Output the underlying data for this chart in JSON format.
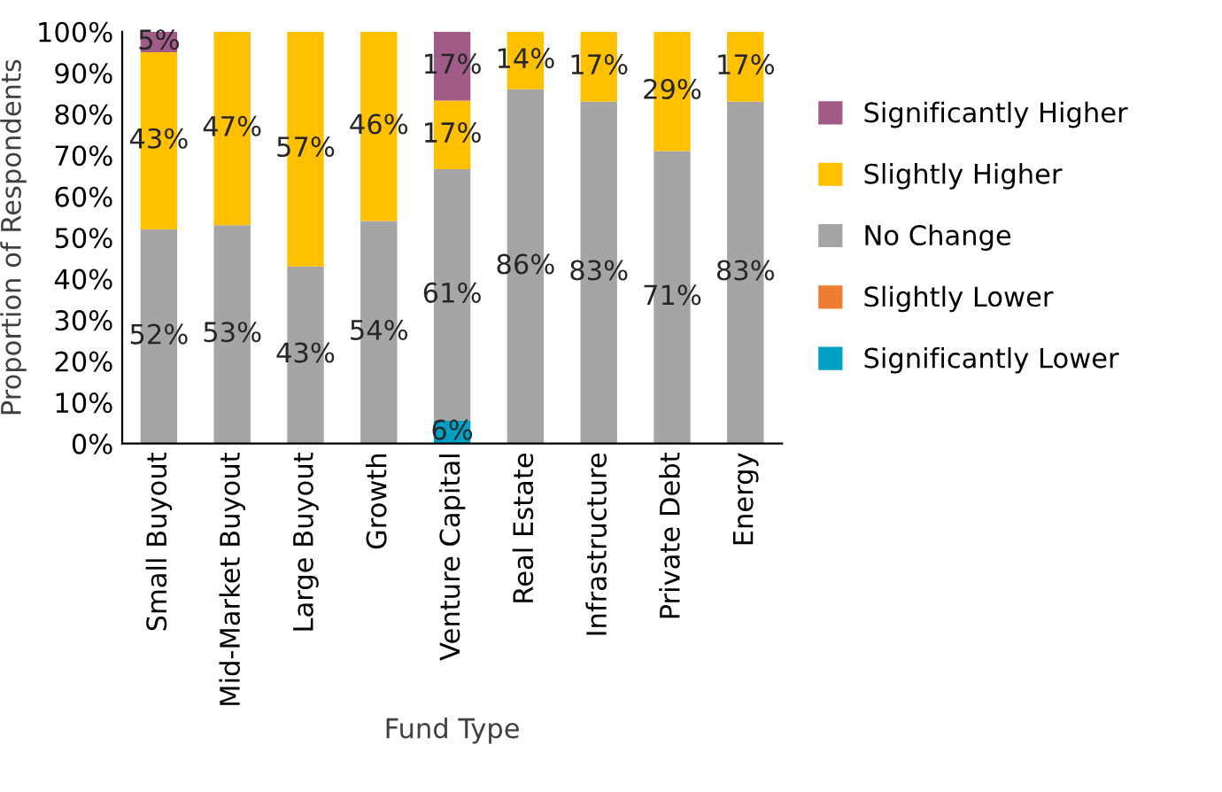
{
  "chart_data": {
    "type": "bar",
    "stacked": true,
    "xlabel": "Fund Type",
    "ylabel": "Proportion of Respondents",
    "categories": [
      "Small Buyout",
      "Mid-Market Buyout",
      "Large Buyout",
      "Growth",
      "Venture Capital",
      "Real Estate",
      "Infrastructure",
      "Private Debt",
      "Energy"
    ],
    "series": [
      {
        "name": "Significantly Lower",
        "color": "#009fc4",
        "values": [
          0,
          0,
          0,
          0,
          5.5,
          0,
          0,
          0,
          0
        ],
        "value_labels": [
          null,
          null,
          null,
          null,
          "6%",
          null,
          null,
          null,
          null
        ]
      },
      {
        "name": "Slightly Lower",
        "color": "#ed7d31",
        "values": [
          0,
          0,
          0,
          0,
          0,
          0,
          0,
          0,
          0
        ],
        "value_labels": [
          null,
          null,
          null,
          null,
          null,
          null,
          null,
          null,
          null
        ]
      },
      {
        "name": "No Change",
        "color": "#a5a5a5",
        "values": [
          52,
          53,
          43,
          54,
          61.1,
          86,
          83,
          71,
          83
        ],
        "value_labels": [
          "52%",
          "53%",
          "43%",
          "54%",
          "61%",
          "86%",
          "83%",
          "71%",
          "83%"
        ]
      },
      {
        "name": "Slightly Higher",
        "color": "#ffc000",
        "values": [
          43,
          47,
          57,
          46,
          16.7,
          14,
          17,
          29,
          17
        ],
        "value_labels": [
          "43%",
          "47%",
          "57%",
          "46%",
          "17%",
          "14%",
          "17%",
          "29%",
          "17%"
        ]
      },
      {
        "name": "Significantly Higher",
        "color": "#a05c87",
        "values": [
          5,
          0,
          0,
          0,
          16.7,
          0,
          0,
          0,
          0
        ],
        "value_labels": [
          "5%",
          null,
          null,
          null,
          "17%",
          null,
          null,
          null,
          null
        ]
      }
    ],
    "ylim": [
      0,
      100
    ],
    "yticks": [
      {
        "value": 0,
        "label": "0%"
      },
      {
        "value": 10,
        "label": "10%"
      },
      {
        "value": 20,
        "label": "20%"
      },
      {
        "value": 30,
        "label": "30%"
      },
      {
        "value": 40,
        "label": "40%"
      },
      {
        "value": 50,
        "label": "50%"
      },
      {
        "value": 60,
        "label": "60%"
      },
      {
        "value": 70,
        "label": "70%"
      },
      {
        "value": 80,
        "label": "80%"
      },
      {
        "value": 90,
        "label": "90%"
      },
      {
        "value": 100,
        "label": "100%"
      }
    ],
    "grid": false,
    "legend": "right"
  }
}
